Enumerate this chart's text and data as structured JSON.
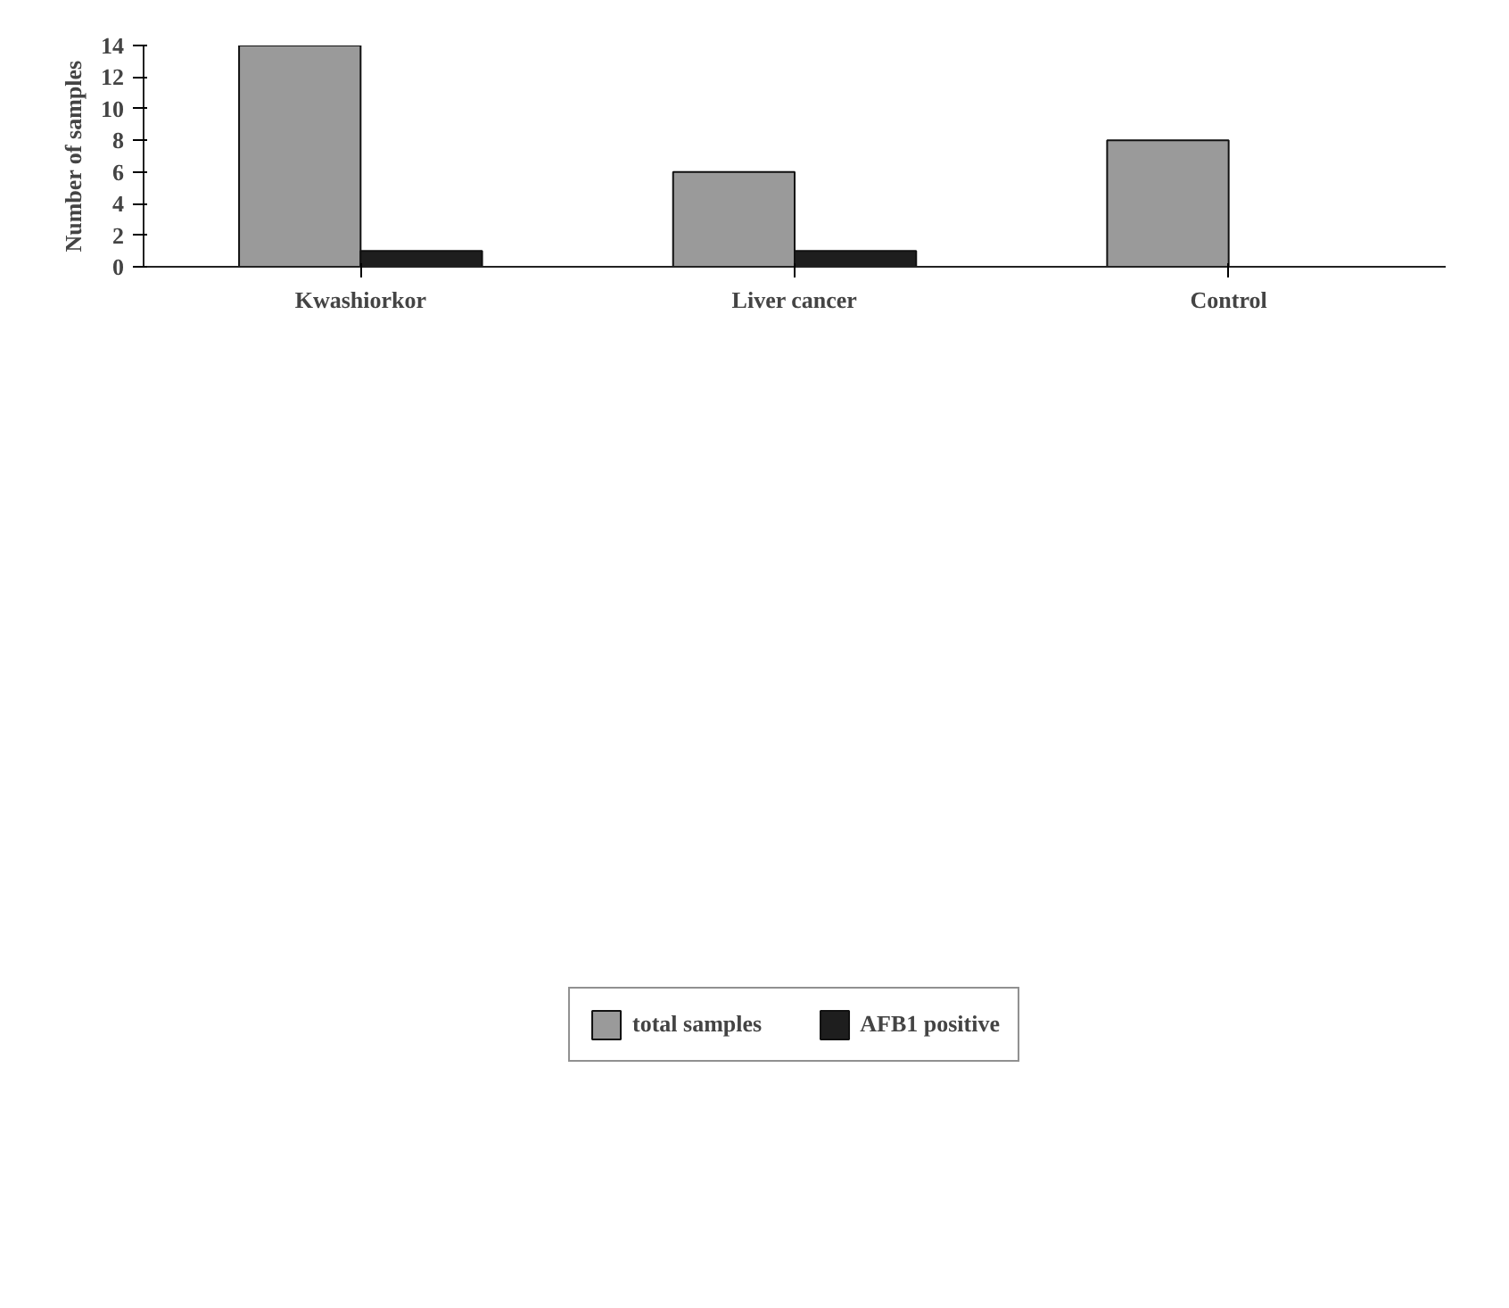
{
  "chart_data": {
    "type": "bar",
    "ylabel": "Number of samples",
    "categories": [
      "Kwashiorkor",
      "Liver cancer",
      "Control"
    ],
    "series": [
      {
        "name": "total samples",
        "color": "#9a9a9a",
        "values": [
          14,
          6,
          8
        ]
      },
      {
        "name": "AFB1 positive",
        "color": "#1e1e1e",
        "values": [
          1,
          1,
          0
        ]
      }
    ],
    "ylim": [
      0,
      14
    ],
    "yticks": [
      0,
      2,
      4,
      6,
      8,
      10,
      12,
      14
    ],
    "grid": false,
    "legend": "bottom"
  }
}
